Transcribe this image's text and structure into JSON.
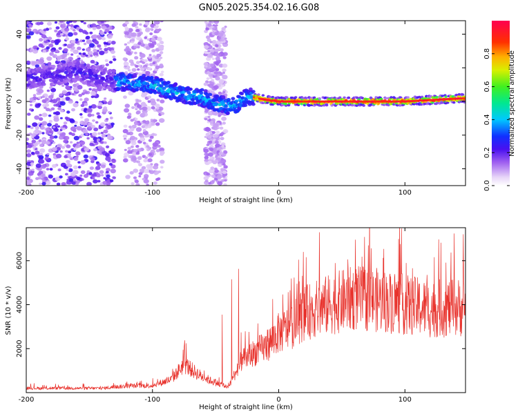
{
  "title": "GN05.2025.354.02.16.G08",
  "chart_data": [
    {
      "type": "heatmap",
      "xlabel": "Height of straight line (km)",
      "ylabel": "Frequency (Hz)",
      "xlim": [
        -200,
        148
      ],
      "ylim": [
        -50,
        48
      ],
      "xticks": [
        -200,
        -100,
        0,
        100
      ],
      "yticks": [
        -40,
        -20,
        0,
        20,
        40
      ],
      "colorbar": {
        "label": "Normalized spectral amplitude",
        "range": [
          0,
          1
        ],
        "ticks": [
          0.0,
          0.2,
          0.4,
          0.6,
          0.8
        ]
      },
      "ridge": [
        [
          -200,
          13
        ],
        [
          -160,
          18
        ],
        [
          -130,
          12
        ],
        [
          -100,
          10
        ],
        [
          -80,
          5
        ],
        [
          -60,
          2
        ],
        [
          -45,
          -2
        ],
        [
          -35,
          -3
        ],
        [
          -25,
          3
        ],
        [
          -10,
          1
        ],
        [
          0,
          0
        ],
        [
          50,
          0
        ],
        [
          100,
          0
        ],
        [
          148,
          2
        ]
      ],
      "interference_bands_x": [
        [
          -200,
          -130
        ],
        [
          -122,
          -92
        ],
        [
          -58,
          -42
        ]
      ]
    },
    {
      "type": "line",
      "xlabel": "Height of straight line (km)",
      "ylabel": "SNR (10 * v/v)",
      "xlim": [
        -200,
        148
      ],
      "ylim": [
        0,
        7500
      ],
      "xticks": [
        -200,
        -100,
        0,
        100
      ],
      "yticks": [
        2000,
        4000,
        6000
      ],
      "color": "#e8322c",
      "envelope": [
        [
          -200,
          200
        ],
        [
          -140,
          200
        ],
        [
          -120,
          300
        ],
        [
          -100,
          320
        ],
        [
          -85,
          600
        ],
        [
          -75,
          1300
        ],
        [
          -68,
          1000
        ],
        [
          -60,
          700
        ],
        [
          -50,
          450
        ],
        [
          -40,
          250
        ],
        [
          -30,
          1400
        ],
        [
          -20,
          1800
        ],
        [
          -10,
          2100
        ],
        [
          0,
          2700
        ],
        [
          10,
          3000
        ],
        [
          20,
          3600
        ],
        [
          40,
          4000
        ],
        [
          60,
          4300
        ],
        [
          80,
          4200
        ],
        [
          100,
          4000
        ],
        [
          120,
          3800
        ],
        [
          148,
          3900
        ]
      ]
    }
  ]
}
